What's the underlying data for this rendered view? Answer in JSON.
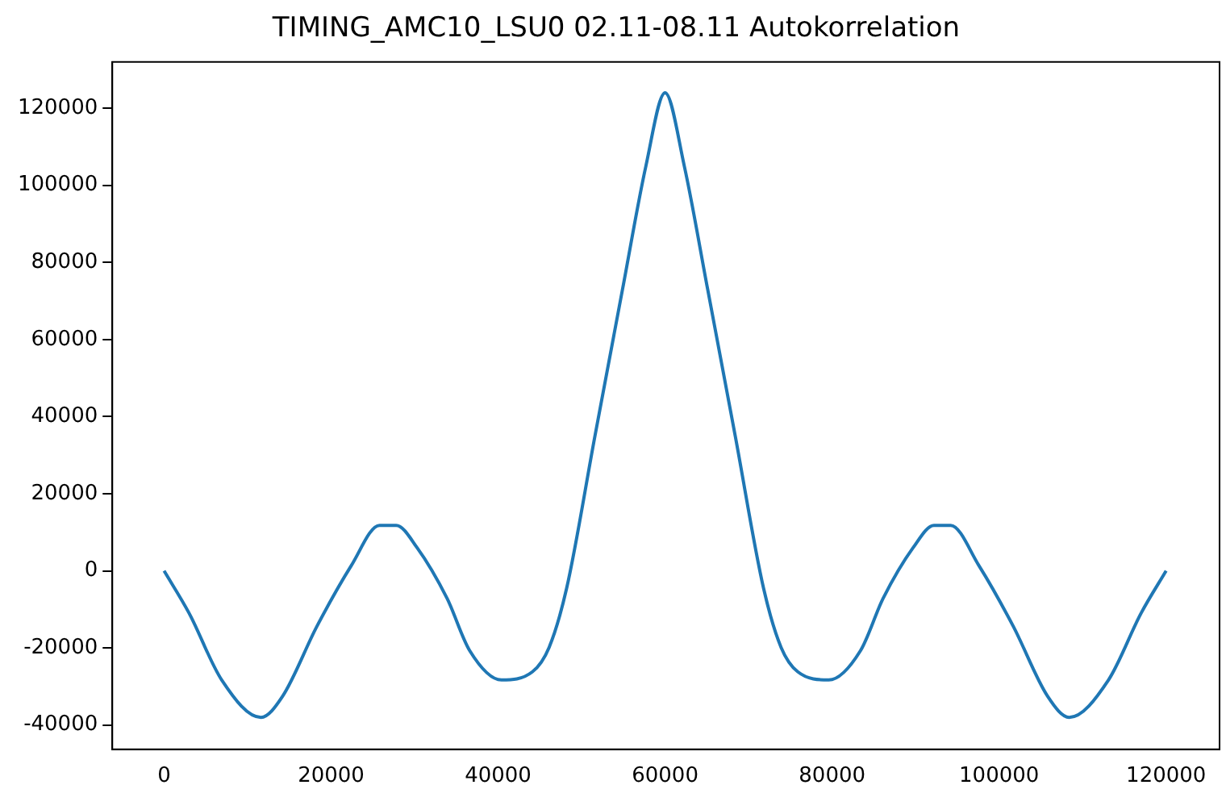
{
  "chart_data": {
    "type": "line",
    "title": "TIMING_AMC10_LSU0 02.11-08.11 Autokorrelation",
    "x": [
      0,
      3000,
      6900,
      11600,
      14200,
      18300,
      22400,
      25800,
      27800,
      30300,
      33900,
      36600,
      40400,
      44100,
      46100,
      48200,
      51600,
      54900,
      57700,
      60000,
      62300,
      65100,
      68400,
      71800,
      73900,
      75900,
      79600,
      83400,
      86100,
      89700,
      92200,
      94200,
      97600,
      101700,
      105800,
      108400,
      113100,
      117000,
      120000
    ],
    "series": [
      {
        "color": "#1f77b4",
        "values": [
          0,
          -11000,
          -28300,
          -38000,
          -32500,
          -14400,
          1300,
          11800,
          11800,
          6000,
          -7200,
          -20700,
          -28300,
          -26200,
          -19900,
          -4600,
          35000,
          73000,
          105000,
          124000,
          105000,
          73000,
          35000,
          -4600,
          -19900,
          -26200,
          -28300,
          -20700,
          -7200,
          6000,
          11800,
          11800,
          1300,
          -14400,
          -32500,
          -38000,
          -28300,
          -11000,
          0
        ]
      }
    ],
    "xlim": [
      -6200,
      126400
    ],
    "ylim": [
      -46300,
      132000
    ],
    "xticks": [
      0,
      20000,
      40000,
      60000,
      80000,
      100000,
      120000
    ],
    "yticks": [
      -40000,
      -20000,
      0,
      20000,
      40000,
      60000,
      80000,
      100000,
      120000
    ],
    "grid": false,
    "legend": false,
    "marker": "none",
    "line_style": "solid"
  }
}
